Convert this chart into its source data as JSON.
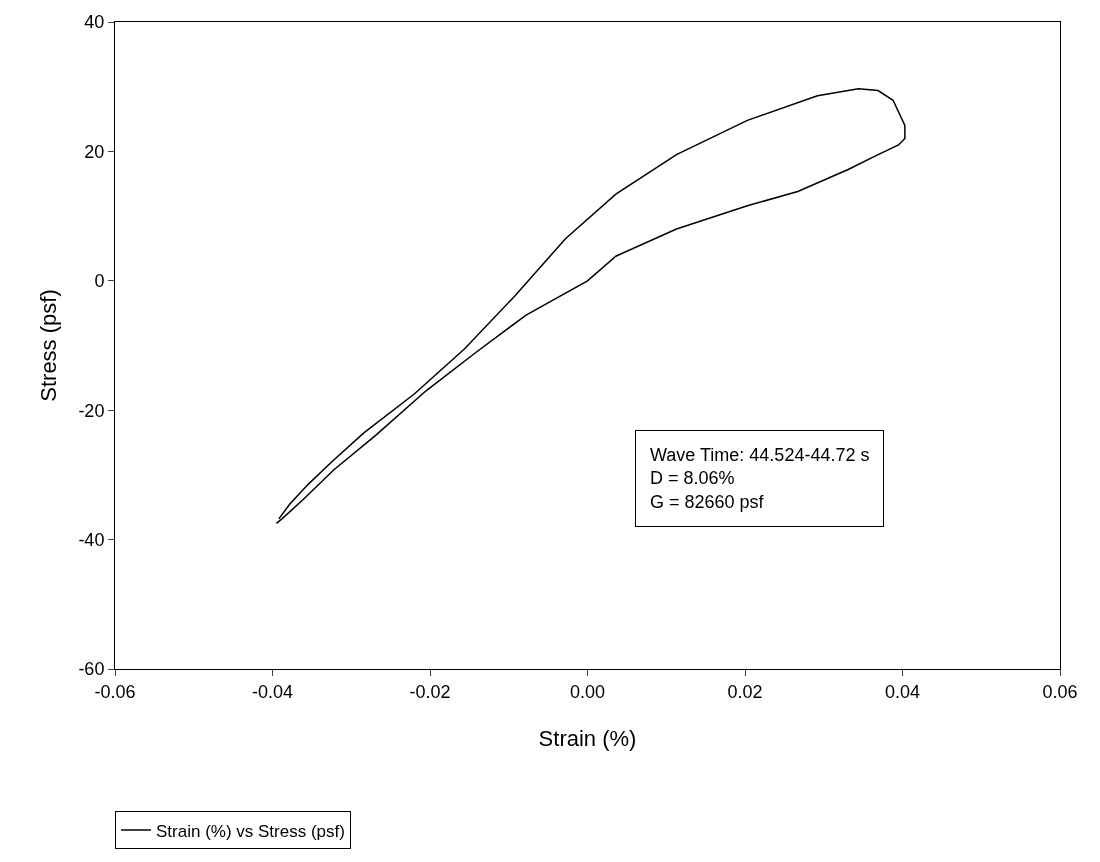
{
  "chart_data": {
    "type": "line",
    "xlabel": "Strain (%)",
    "ylabel": "Stress (psf)",
    "xlim": [
      -0.06,
      0.06
    ],
    "xticks": [
      {
        "value": -0.06,
        "label": "-0.06"
      },
      {
        "value": -0.04,
        "label": "-0.04"
      },
      {
        "value": -0.02,
        "label": "-0.02"
      },
      {
        "value": 0,
        "label": "0.00"
      },
      {
        "value": 0.02,
        "label": "0.02"
      },
      {
        "value": 0.04,
        "label": "0.04"
      },
      {
        "value": 0.06,
        "label": "0.06"
      }
    ],
    "ylim": [
      -60,
      40
    ],
    "yticks": [
      -60,
      -40,
      -20,
      0,
      20,
      40
    ],
    "legend": "bottom left",
    "marker": "none",
    "line_style": "solid",
    "annotations": [
      "Wave Time: 44.524-44.72 s\nD = 8.06%\nG = 82660 psf"
    ],
    "series": [
      {
        "name": "Strain (%) vs Stress (psf)",
        "color": "#000000",
        "x": [
          -0.0395,
          -0.0388,
          -0.0361,
          -0.0322,
          -0.0269,
          -0.0205,
          -0.0141,
          -0.0078,
          0.0,
          0.0036,
          0.0113,
          0.0203,
          0.0267,
          0.0331,
          0.0369,
          0.0395,
          0.0403,
          0.0403,
          0.0388,
          0.0369,
          0.0344,
          0.0292,
          0.0203,
          0.0113,
          0.0036,
          -0.0028,
          -0.0092,
          -0.0156,
          -0.022,
          -0.0284,
          -0.0325,
          -0.0355,
          -0.0378,
          -0.0392
        ],
        "values": [
          -37.5,
          -36.8,
          -33.8,
          -29.2,
          -23.9,
          -17,
          -11,
          -5.3,
          0,
          3.8,
          8,
          11.6,
          13.8,
          17.2,
          19.5,
          21,
          22,
          24,
          27.9,
          29.4,
          29.7,
          28.6,
          24.8,
          19.5,
          13.4,
          6.5,
          -2.3,
          -10.5,
          -17.5,
          -23.5,
          -28,
          -31.5,
          -34.5,
          -36.8
        ]
      }
    ]
  }
}
